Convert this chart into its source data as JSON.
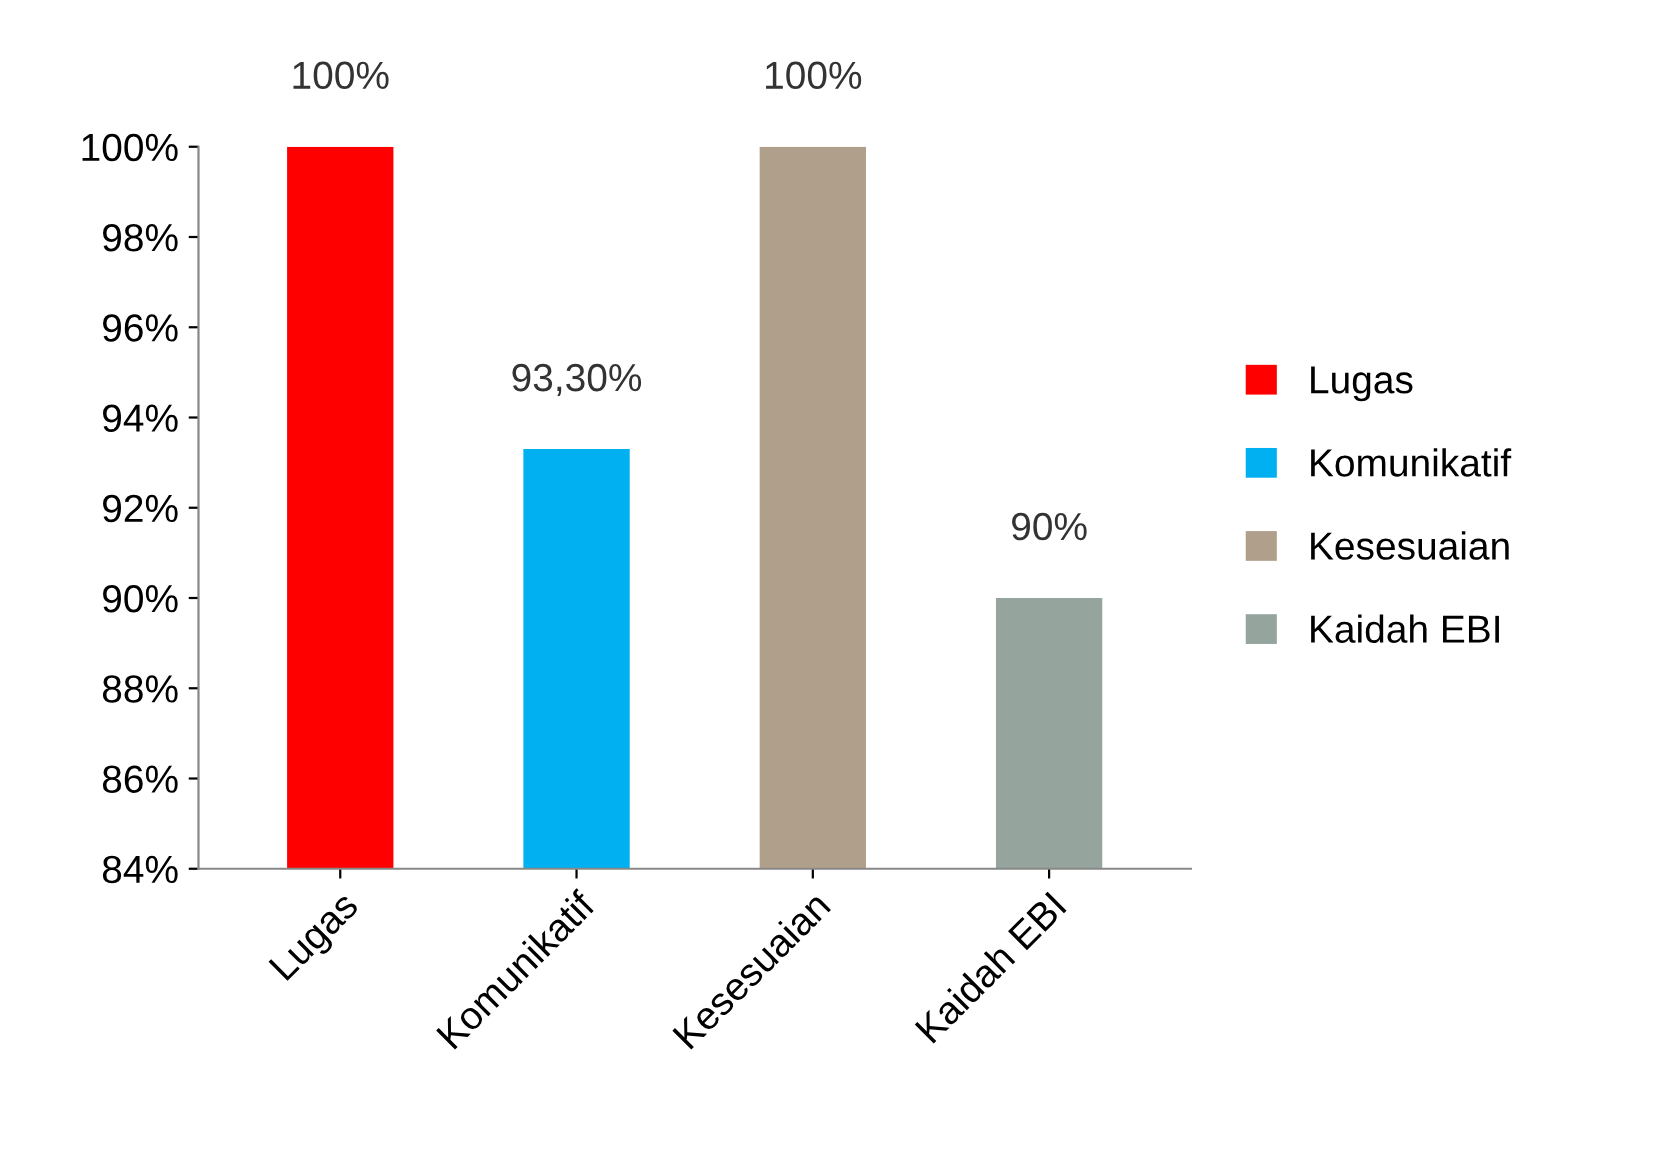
{
  "chart_data": {
    "type": "bar",
    "categories": [
      "Lugas",
      "Komunikatif",
      "Kesesuaian",
      "Kaidah EBI"
    ],
    "series": [
      {
        "name": "Lugas",
        "color": "#ff0000",
        "values": [
          100,
          null,
          null,
          null
        ],
        "value_labels": [
          "100%",
          null,
          null,
          null
        ]
      },
      {
        "name": "Komunikatif",
        "color": "#00b0f0",
        "values": [
          null,
          93.3,
          null,
          null
        ],
        "value_labels": [
          null,
          "93,30%",
          null,
          null
        ]
      },
      {
        "name": "Kesesuaian",
        "color": "#b09f8a",
        "values": [
          null,
          null,
          100,
          null
        ],
        "value_labels": [
          null,
          null,
          "100%",
          null
        ]
      },
      {
        "name": "Kaidah EBI",
        "color": "#95a59d",
        "values": [
          null,
          null,
          null,
          90
        ],
        "value_labels": [
          null,
          null,
          null,
          "90%"
        ]
      }
    ],
    "ylim": [
      84,
      100
    ],
    "yticks": [
      {
        "value": 84,
        "label": "84%"
      },
      {
        "value": 86,
        "label": "86%"
      },
      {
        "value": 88,
        "label": "88%"
      },
      {
        "value": 90,
        "label": "90%"
      },
      {
        "value": 92,
        "label": "92%"
      },
      {
        "value": 94,
        "label": "94%"
      },
      {
        "value": 96,
        "label": "96%"
      },
      {
        "value": 98,
        "label": "98%"
      },
      {
        "value": 100,
        "label": "100%"
      }
    ],
    "grid": false,
    "legend": "right"
  }
}
